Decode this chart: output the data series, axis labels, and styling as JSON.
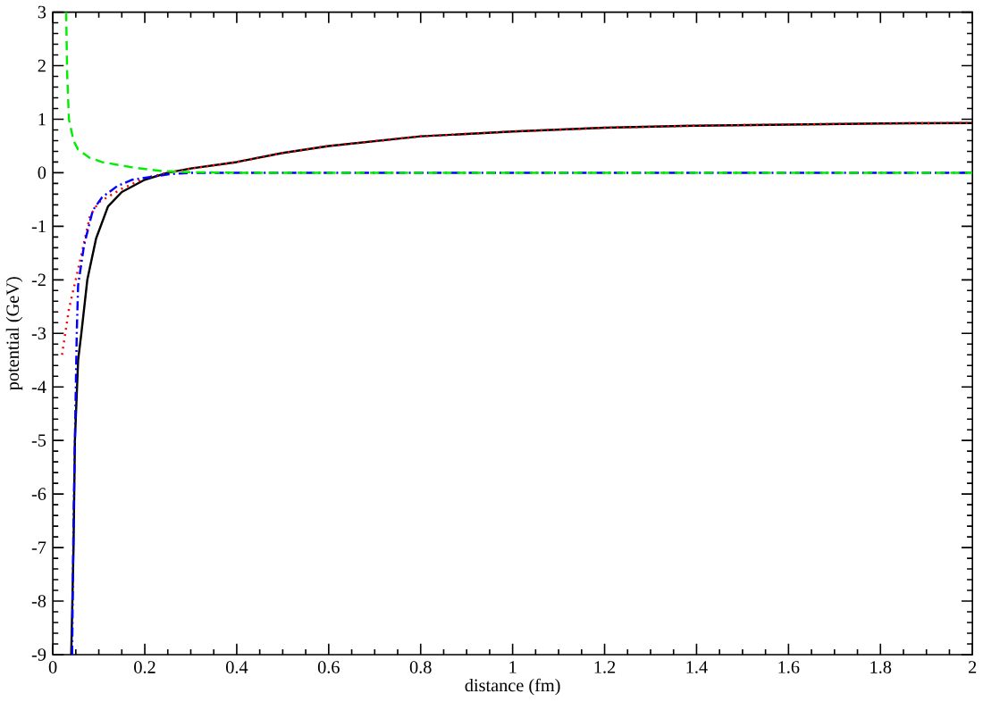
{
  "chart_data": {
    "type": "line",
    "xlabel": "distance (fm)",
    "ylabel": "potential (GeV)",
    "xlim": [
      0,
      2
    ],
    "ylim": [
      -9,
      3
    ],
    "xticks": [
      0,
      0.2,
      0.4,
      0.6,
      0.8,
      1,
      1.2,
      1.4,
      1.6,
      1.8,
      2
    ],
    "yticks": [
      -9,
      -8,
      -7,
      -6,
      -5,
      -4,
      -3,
      -2,
      -1,
      0,
      1,
      2,
      3
    ],
    "grid": false,
    "marker": "none",
    "series": [
      {
        "color": "#000000",
        "line_style": "solid",
        "x": [
          0.04,
          0.045,
          0.048,
          0.055,
          0.062,
          0.075,
          0.094,
          0.12,
          0.15,
          0.2,
          0.25,
          0.3,
          0.4,
          0.5,
          0.6,
          0.8,
          1,
          1.2,
          1.4,
          1.6,
          1.8,
          2
        ],
        "values": [
          -9,
          -7,
          -5,
          -3.5,
          -3,
          -2,
          -1.23,
          -0.63,
          -0.36,
          -0.13,
          0,
          0.08,
          0.2,
          0.37,
          0.5,
          0.68,
          0.77,
          0.84,
          0.88,
          0.9,
          0.92,
          0.93
        ]
      },
      {
        "color": "#ff0000",
        "line_style": "dotted",
        "x": [
          0.02,
          0.035,
          0.055,
          0.081,
          0.1,
          0.12,
          0.15,
          0.2,
          0.25,
          0.3,
          0.4,
          0.5,
          0.6,
          0.8,
          1,
          1.2,
          1.4,
          1.6,
          1.8,
          2
        ],
        "values": [
          -3.4,
          -2.55,
          -1.8,
          -0.8,
          -0.55,
          -0.45,
          -0.3,
          -0.1,
          0,
          0.08,
          0.2,
          0.37,
          0.5,
          0.68,
          0.77,
          0.84,
          0.88,
          0.9,
          0.92,
          0.93
        ]
      },
      {
        "color": "#0000ff",
        "line_style": "dashdot",
        "x": [
          0.042,
          0.045,
          0.048,
          0.052,
          0.055,
          0.068,
          0.087,
          0.107,
          0.14,
          0.173,
          0.25,
          0.3,
          2
        ],
        "values": [
          -9,
          -6.5,
          -5,
          -3,
          -2.1,
          -1.35,
          -0.7,
          -0.46,
          -0.25,
          -0.13,
          -0.03,
          0,
          0
        ]
      },
      {
        "color": "#00ee00",
        "line_style": "dashed",
        "x": [
          0.029,
          0.031,
          0.035,
          0.045,
          0.055,
          0.08,
          0.107,
          0.173,
          0.238,
          0.3,
          0.4,
          2
        ],
        "values": [
          3,
          1.9,
          1.0,
          0.6,
          0.43,
          0.28,
          0.2,
          0.1,
          0.03,
          0.01,
          0,
          0
        ]
      }
    ]
  }
}
